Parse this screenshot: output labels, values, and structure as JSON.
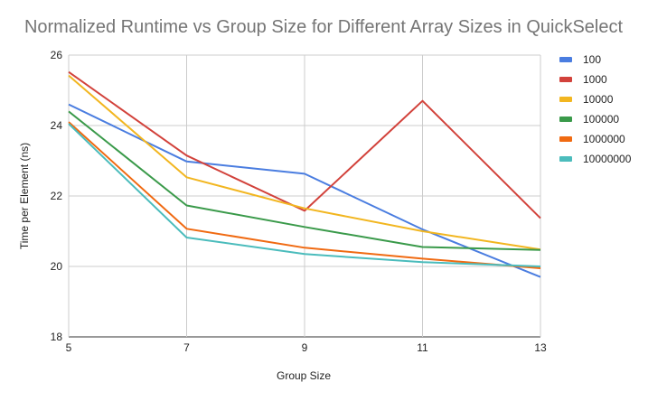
{
  "chart_data": {
    "type": "line",
    "title": "Normalized Runtime vs Group Size for Different Array Sizes in QuickSelect",
    "xlabel": "Group Size",
    "ylabel": "Time per Element (ns)",
    "x": [
      5,
      7,
      9,
      11,
      13
    ],
    "xticks": [
      "5",
      "7",
      "9",
      "11",
      "13"
    ],
    "ylim": [
      18,
      26
    ],
    "yticks": [
      "18",
      "20",
      "22",
      "24",
      "26"
    ],
    "grid": true,
    "legend_position": "right",
    "series": [
      {
        "name": "100",
        "color": "#4a7de0",
        "values": [
          24.6,
          22.98,
          22.63,
          21.05,
          19.7
        ]
      },
      {
        "name": "1000",
        "color": "#d2423b",
        "values": [
          25.52,
          23.15,
          21.58,
          24.7,
          21.37
        ]
      },
      {
        "name": "10000",
        "color": "#f2b620",
        "values": [
          25.42,
          22.53,
          21.65,
          21.0,
          20.48
        ]
      },
      {
        "name": "100000",
        "color": "#3a9a4a",
        "values": [
          24.4,
          21.73,
          21.12,
          20.55,
          20.47
        ]
      },
      {
        "name": "1000000",
        "color": "#f06a12",
        "values": [
          24.1,
          21.07,
          20.53,
          20.22,
          19.95
        ]
      },
      {
        "name": "10000000",
        "color": "#4bbcbc",
        "values": [
          24.05,
          20.82,
          20.35,
          20.12,
          20.0
        ]
      }
    ]
  }
}
